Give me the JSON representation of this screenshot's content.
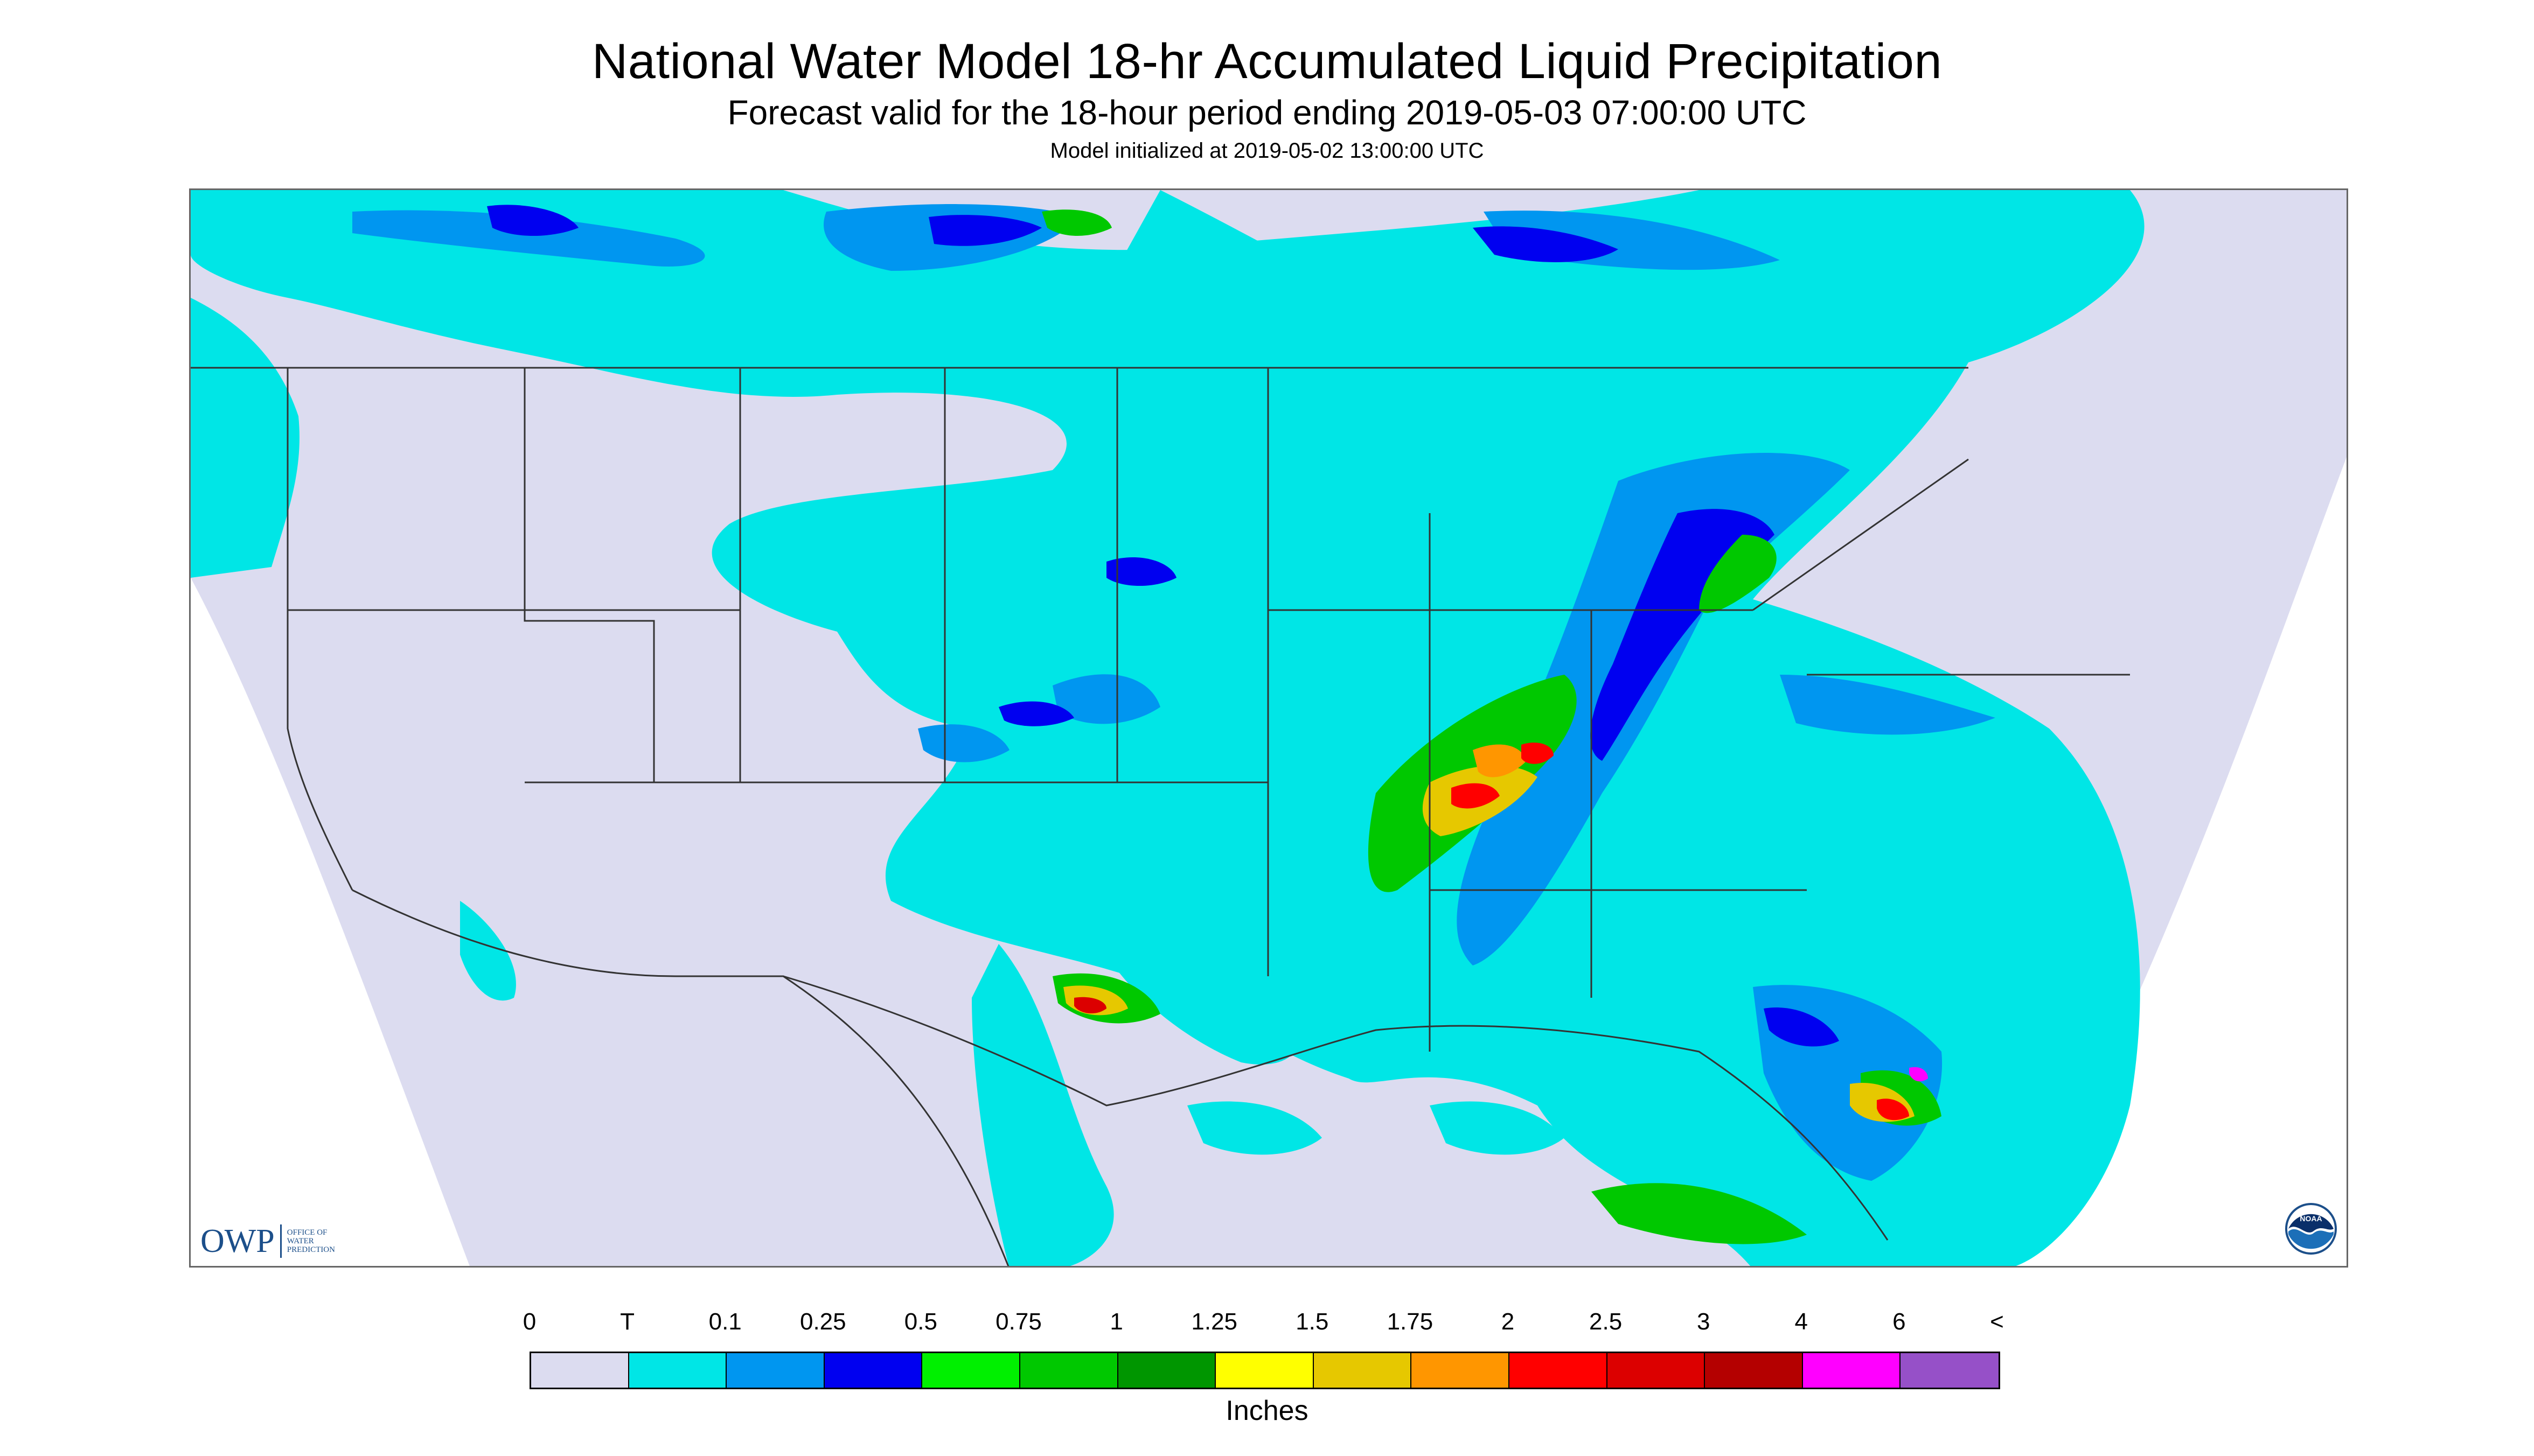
{
  "title": "National Water Model 18-hr Accumulated Liquid Precipitation",
  "subtitle": "Forecast valid for the 18-hour period ending 2019-05-03 07:00:00 UTC",
  "init_line": "Model initialized at 2019-05-02 13:00:00 UTC",
  "owp_logo": {
    "mark": "OWP",
    "sub": "Office of Water Prediction"
  },
  "noaa_logo": {
    "text": "NOAA"
  },
  "legend": {
    "labels": [
      "0",
      "T",
      "0.1",
      "0.25",
      "0.5",
      "0.75",
      "1",
      "1.25",
      "1.5",
      "1.75",
      "2",
      "2.5",
      "3",
      "4",
      "6",
      "<"
    ],
    "colors": [
      "#dcdcf0",
      "#00e6e6",
      "#0096f0",
      "#0000f0",
      "#00f000",
      "#00c800",
      "#009600",
      "#ffff00",
      "#e6c800",
      "#ff9600",
      "#ff0000",
      "#dc0000",
      "#b40000",
      "#ff00ff",
      "#9650c8"
    ],
    "units": "Inches"
  },
  "colors": {
    "no_precip": "#dcdcf0",
    "trace": "#00e6e6",
    "light_blue": "#0096f0",
    "blue": "#0000f0",
    "green": "#00f000",
    "red": "#ff0000",
    "magenta": "#ff00ff",
    "border_lines": "#333333"
  }
}
